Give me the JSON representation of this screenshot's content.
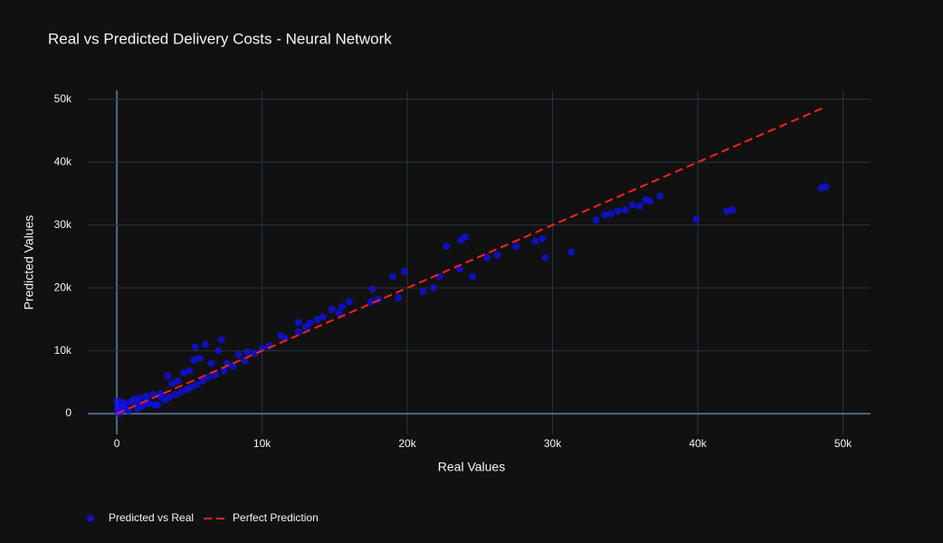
{
  "chart_data": {
    "type": "scatter",
    "title": "Real vs Predicted Delivery Costs - Neural Network",
    "x_label": "Real Values",
    "y_label": "Predicted Values",
    "xlim": [
      -2000,
      51900
    ],
    "ylim": [
      -3300,
      51400
    ],
    "xticks": [
      0,
      {
        "value": 10000,
        "label": "10k"
      },
      {
        "value": 20000,
        "label": "20k"
      },
      {
        "value": 30000,
        "label": "30k"
      },
      {
        "value": 40000,
        "label": "40k"
      },
      {
        "value": 50000,
        "label": "50k"
      }
    ],
    "yticks": [
      0,
      {
        "value": 10000,
        "label": "10k"
      },
      {
        "value": 20000,
        "label": "20k"
      },
      {
        "value": 30000,
        "label": "30k"
      },
      {
        "value": 40000,
        "label": "40k"
      },
      {
        "value": 50000,
        "label": "50k"
      }
    ],
    "grid": true,
    "legend": "bottom-left",
    "series": [
      {
        "name": "Predicted vs Real",
        "color": "#1010ff",
        "mode": "markers",
        "x": [
          100,
          200,
          300,
          400,
          500,
          600,
          800,
          1000,
          1200,
          1400,
          1600,
          1800,
          2000,
          2200,
          2500,
          2600,
          2800,
          3000,
          3300,
          3500,
          3600,
          3800,
          4000,
          4200,
          4400,
          4600,
          4800,
          5000,
          5100,
          5300,
          5400,
          5500,
          5700,
          5900,
          6100,
          6300,
          6500,
          6800,
          7000,
          7200,
          7400,
          7600,
          8000,
          8400,
          8800,
          9000,
          9500,
          10000,
          10500,
          11300,
          11600,
          12500,
          12500,
          13000,
          13300,
          13800,
          14200,
          14800,
          15300,
          15500,
          16000,
          17500,
          17600,
          18000,
          19000,
          19400,
          19800,
          21100,
          21800,
          22200,
          22700,
          23600,
          23700,
          24000,
          24500,
          25500,
          26200,
          27500,
          28800,
          29300,
          29500,
          31300,
          33000,
          33600,
          34000,
          34500,
          35000,
          35500,
          36000,
          36400,
          36700,
          37400,
          39900,
          42000,
          42400,
          48500,
          48800,
          1500,
          2100,
          3000,
          50,
          0,
          150
        ],
        "values": [
          300,
          1200,
          600,
          1800,
          900,
          1500,
          400,
          1900,
          2300,
          700,
          2500,
          1200,
          2800,
          1600,
          3000,
          1400,
          1400,
          3200,
          2200,
          6000,
          2600,
          4800,
          3000,
          5200,
          3400,
          6500,
          3800,
          6800,
          4200,
          8500,
          10600,
          4600,
          8800,
          5200,
          11000,
          5800,
          8000,
          6200,
          10000,
          11800,
          6800,
          8000,
          7500,
          9400,
          8400,
          9800,
          9600,
          10400,
          10800,
          12400,
          12000,
          13000,
          14500,
          13800,
          14400,
          15000,
          15400,
          16600,
          16000,
          17000,
          17800,
          17800,
          19800,
          18200,
          21800,
          18400,
          22600,
          19400,
          20000,
          21800,
          26600,
          23000,
          27600,
          28100,
          21800,
          24800,
          25200,
          26600,
          27400,
          27800,
          24800,
          25700,
          30800,
          31600,
          31800,
          32200,
          32400,
          33200,
          33000,
          34000,
          33800,
          34600,
          30900,
          32200,
          32400,
          35900,
          36100,
          1600,
          2000,
          2700,
          800,
          2000,
          0
        ]
      },
      {
        "name": "Perfect Prediction",
        "color": "#ff2020",
        "mode": "dashed-line",
        "x": [
          0,
          48700
        ],
        "values": [
          0,
          48700
        ]
      }
    ]
  }
}
